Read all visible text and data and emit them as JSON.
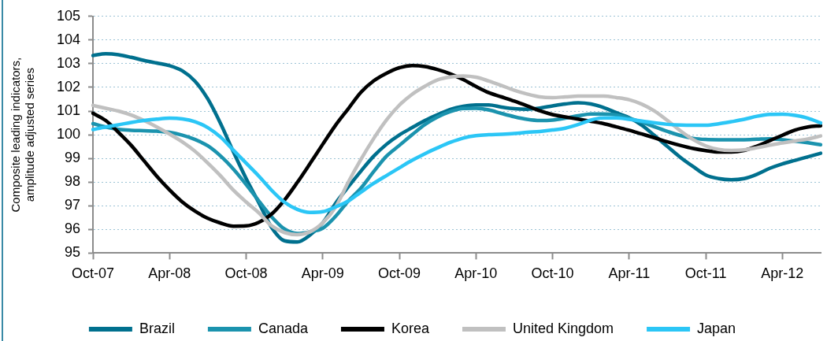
{
  "chart_data": {
    "type": "line",
    "ylabel": "Composite leading indicators, amplitude adjusted series",
    "categories": [
      "Oct-07",
      null,
      null,
      null,
      null,
      null,
      "Apr-08",
      null,
      null,
      null,
      null,
      null,
      "Oct-08",
      null,
      null,
      null,
      null,
      null,
      "Apr-09",
      null,
      null,
      null,
      null,
      null,
      "Oct-09",
      null,
      null,
      null,
      null,
      null,
      "Apr-10",
      null,
      null,
      null,
      null,
      null,
      "Oct-10",
      null,
      null,
      null,
      null,
      null,
      "Apr-11",
      null,
      null,
      null,
      null,
      null,
      "Oct-11",
      null,
      null,
      null,
      null,
      null,
      "Apr-12",
      null,
      null,
      null
    ],
    "ylim": [
      95,
      105
    ],
    "yticks": [
      95,
      96,
      97,
      98,
      99,
      100,
      101,
      102,
      103,
      104,
      105
    ],
    "grid": "y",
    "legend": "bottom",
    "series": [
      {
        "name": "Brazil",
        "color": "#00708e",
        "values": [
          103.35,
          103.42,
          103.38,
          103.27,
          103.14,
          103.03,
          102.92,
          102.7,
          102.26,
          101.51,
          100.47,
          99.28,
          98.15,
          97.12,
          96.08,
          95.52,
          95.47,
          95.76,
          96.28,
          97.1,
          97.8,
          98.47,
          99.1,
          99.6,
          99.99,
          100.3,
          100.6,
          100.85,
          101.07,
          101.2,
          101.26,
          101.26,
          101.17,
          101.1,
          101.08,
          101.13,
          101.22,
          101.3,
          101.35,
          101.3,
          101.15,
          100.93,
          100.72,
          100.4,
          99.96,
          99.5,
          99.05,
          98.66,
          98.3,
          98.15,
          98.1,
          98.15,
          98.33,
          98.58,
          98.77,
          98.92,
          99.07,
          99.22
        ]
      },
      {
        "name": "Canada",
        "color": "#1b93ae",
        "values": [
          100.47,
          100.33,
          100.23,
          100.19,
          100.17,
          100.15,
          100.1,
          99.98,
          99.8,
          99.53,
          99.1,
          98.55,
          97.9,
          97.2,
          96.53,
          96.02,
          95.83,
          95.9,
          96.05,
          96.55,
          97.2,
          97.75,
          98.45,
          99.1,
          99.55,
          100.0,
          100.43,
          100.75,
          100.98,
          101.11,
          101.12,
          101.05,
          100.9,
          100.76,
          100.65,
          100.6,
          100.62,
          100.7,
          100.8,
          100.88,
          100.88,
          100.84,
          100.7,
          100.53,
          100.33,
          100.14,
          99.97,
          99.85,
          99.8,
          99.79,
          99.79,
          99.79,
          99.81,
          99.83,
          99.79,
          99.73,
          99.66,
          99.58
        ]
      },
      {
        "name": "Korea",
        "color": "#000000",
        "values": [
          100.91,
          100.6,
          100.1,
          99.55,
          98.9,
          98.25,
          97.67,
          97.16,
          96.77,
          96.47,
          96.27,
          96.14,
          96.15,
          96.3,
          96.65,
          97.24,
          97.98,
          98.78,
          99.6,
          100.4,
          101.1,
          101.8,
          102.28,
          102.6,
          102.83,
          102.92,
          102.88,
          102.75,
          102.57,
          102.33,
          102.04,
          101.78,
          101.6,
          101.42,
          101.22,
          101.01,
          100.85,
          100.75,
          100.66,
          100.57,
          100.47,
          100.33,
          100.19,
          100.03,
          99.87,
          99.7,
          99.55,
          99.42,
          99.33,
          99.27,
          99.27,
          99.34,
          99.52,
          99.75,
          99.98,
          100.2,
          100.33,
          100.38
        ]
      },
      {
        "name": "United Kingdom",
        "color": "#c0c0c0",
        "values": [
          101.24,
          101.12,
          101.0,
          100.83,
          100.6,
          100.33,
          100.03,
          99.7,
          99.3,
          98.8,
          98.26,
          97.66,
          97.16,
          96.7,
          96.15,
          95.87,
          95.78,
          95.9,
          96.28,
          96.94,
          98.0,
          98.97,
          99.85,
          100.63,
          101.25,
          101.71,
          102.05,
          102.32,
          102.44,
          102.48,
          102.43,
          102.27,
          102.08,
          101.88,
          101.72,
          101.6,
          101.57,
          101.6,
          101.63,
          101.63,
          101.63,
          101.57,
          101.48,
          101.29,
          101.0,
          100.6,
          100.17,
          99.8,
          99.53,
          99.38,
          99.34,
          99.36,
          99.45,
          99.56,
          99.65,
          99.74,
          99.82,
          99.95
        ]
      },
      {
        "name": "Japan",
        "color": "#2bc6f6",
        "values": [
          100.22,
          100.33,
          100.42,
          100.52,
          100.6,
          100.66,
          100.7,
          100.67,
          100.55,
          100.3,
          99.9,
          99.35,
          98.8,
          98.25,
          97.65,
          97.15,
          96.85,
          96.72,
          96.75,
          96.95,
          97.2,
          97.58,
          97.95,
          98.28,
          98.6,
          98.92,
          99.2,
          99.45,
          99.68,
          99.86,
          99.96,
          100.0,
          100.02,
          100.05,
          100.1,
          100.14,
          100.2,
          100.28,
          100.43,
          100.62,
          100.71,
          100.71,
          100.65,
          100.58,
          100.5,
          100.44,
          100.41,
          100.4,
          100.4,
          100.46,
          100.55,
          100.65,
          100.78,
          100.86,
          100.87,
          100.82,
          100.7,
          100.5
        ]
      }
    ]
  }
}
